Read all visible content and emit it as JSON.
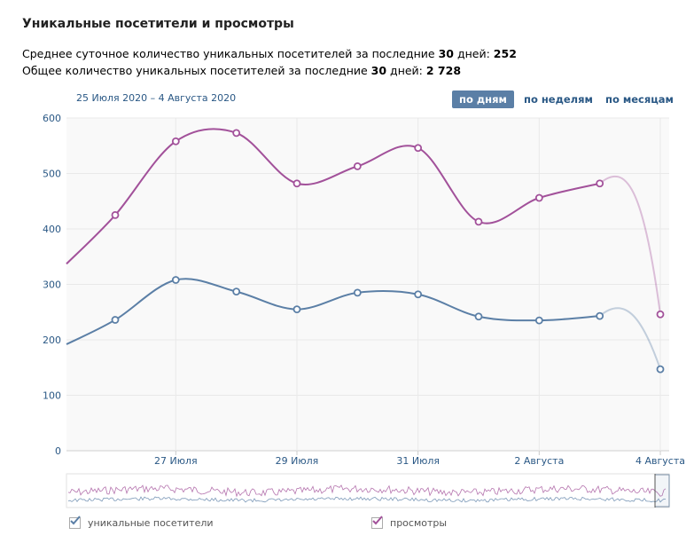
{
  "header": {
    "title": "Уникальные посетители и просмотры",
    "stat1_prefix": "Среднее суточное количество уникальных посетителей за последние ",
    "stat1_days": "30",
    "stat1_mid": " дней: ",
    "stat1_value": "252",
    "stat2_prefix": "Общее количество уникальных посетителей за последние ",
    "stat2_days": "30",
    "stat2_mid": " дней: ",
    "stat2_value": "2 728"
  },
  "date_range": "25 Июля 2020 – 4 Августа 2020",
  "period_tabs": [
    {
      "label": "по дням",
      "active": true
    },
    {
      "label": "по неделям",
      "active": false
    },
    {
      "label": "по месяцам",
      "active": false
    }
  ],
  "legend": {
    "visitors": "уникальные посетители",
    "views": "просмотры"
  },
  "colors": {
    "visitors": "#5b7fa6",
    "views": "#a2519a",
    "grid": "#e9e9e9",
    "axis_text": "#2a5885",
    "tab_active_bg": "#5b7fa6"
  },
  "chart_data": {
    "type": "line",
    "ylim": [
      0,
      600
    ],
    "yticks": [
      0,
      100,
      200,
      300,
      400,
      500,
      600
    ],
    "x_tick_labels": [
      "27 Июля",
      "29 Июля",
      "31 Июля",
      "2 Августа",
      "4 Августа"
    ],
    "x_tick_dates": [
      "2020-07-27",
      "2020-07-29",
      "2020-07-31",
      "2020-08-02",
      "2020-08-04"
    ],
    "x": [
      "2020-07-25",
      "2020-07-26",
      "2020-07-27",
      "2020-07-28",
      "2020-07-29",
      "2020-07-30",
      "2020-07-31",
      "2020-08-01",
      "2020-08-02",
      "2020-08-03",
      "2020-08-04"
    ],
    "series": [
      {
        "name": "уникальные посетители",
        "values": [
          192,
          236,
          308,
          287,
          255,
          285,
          282,
          242,
          235,
          243,
          147
        ]
      },
      {
        "name": "просмотры",
        "values": [
          337,
          425,
          558,
          573,
          482,
          513,
          546,
          413,
          456,
          482,
          246
        ]
      }
    ],
    "grid": true
  }
}
